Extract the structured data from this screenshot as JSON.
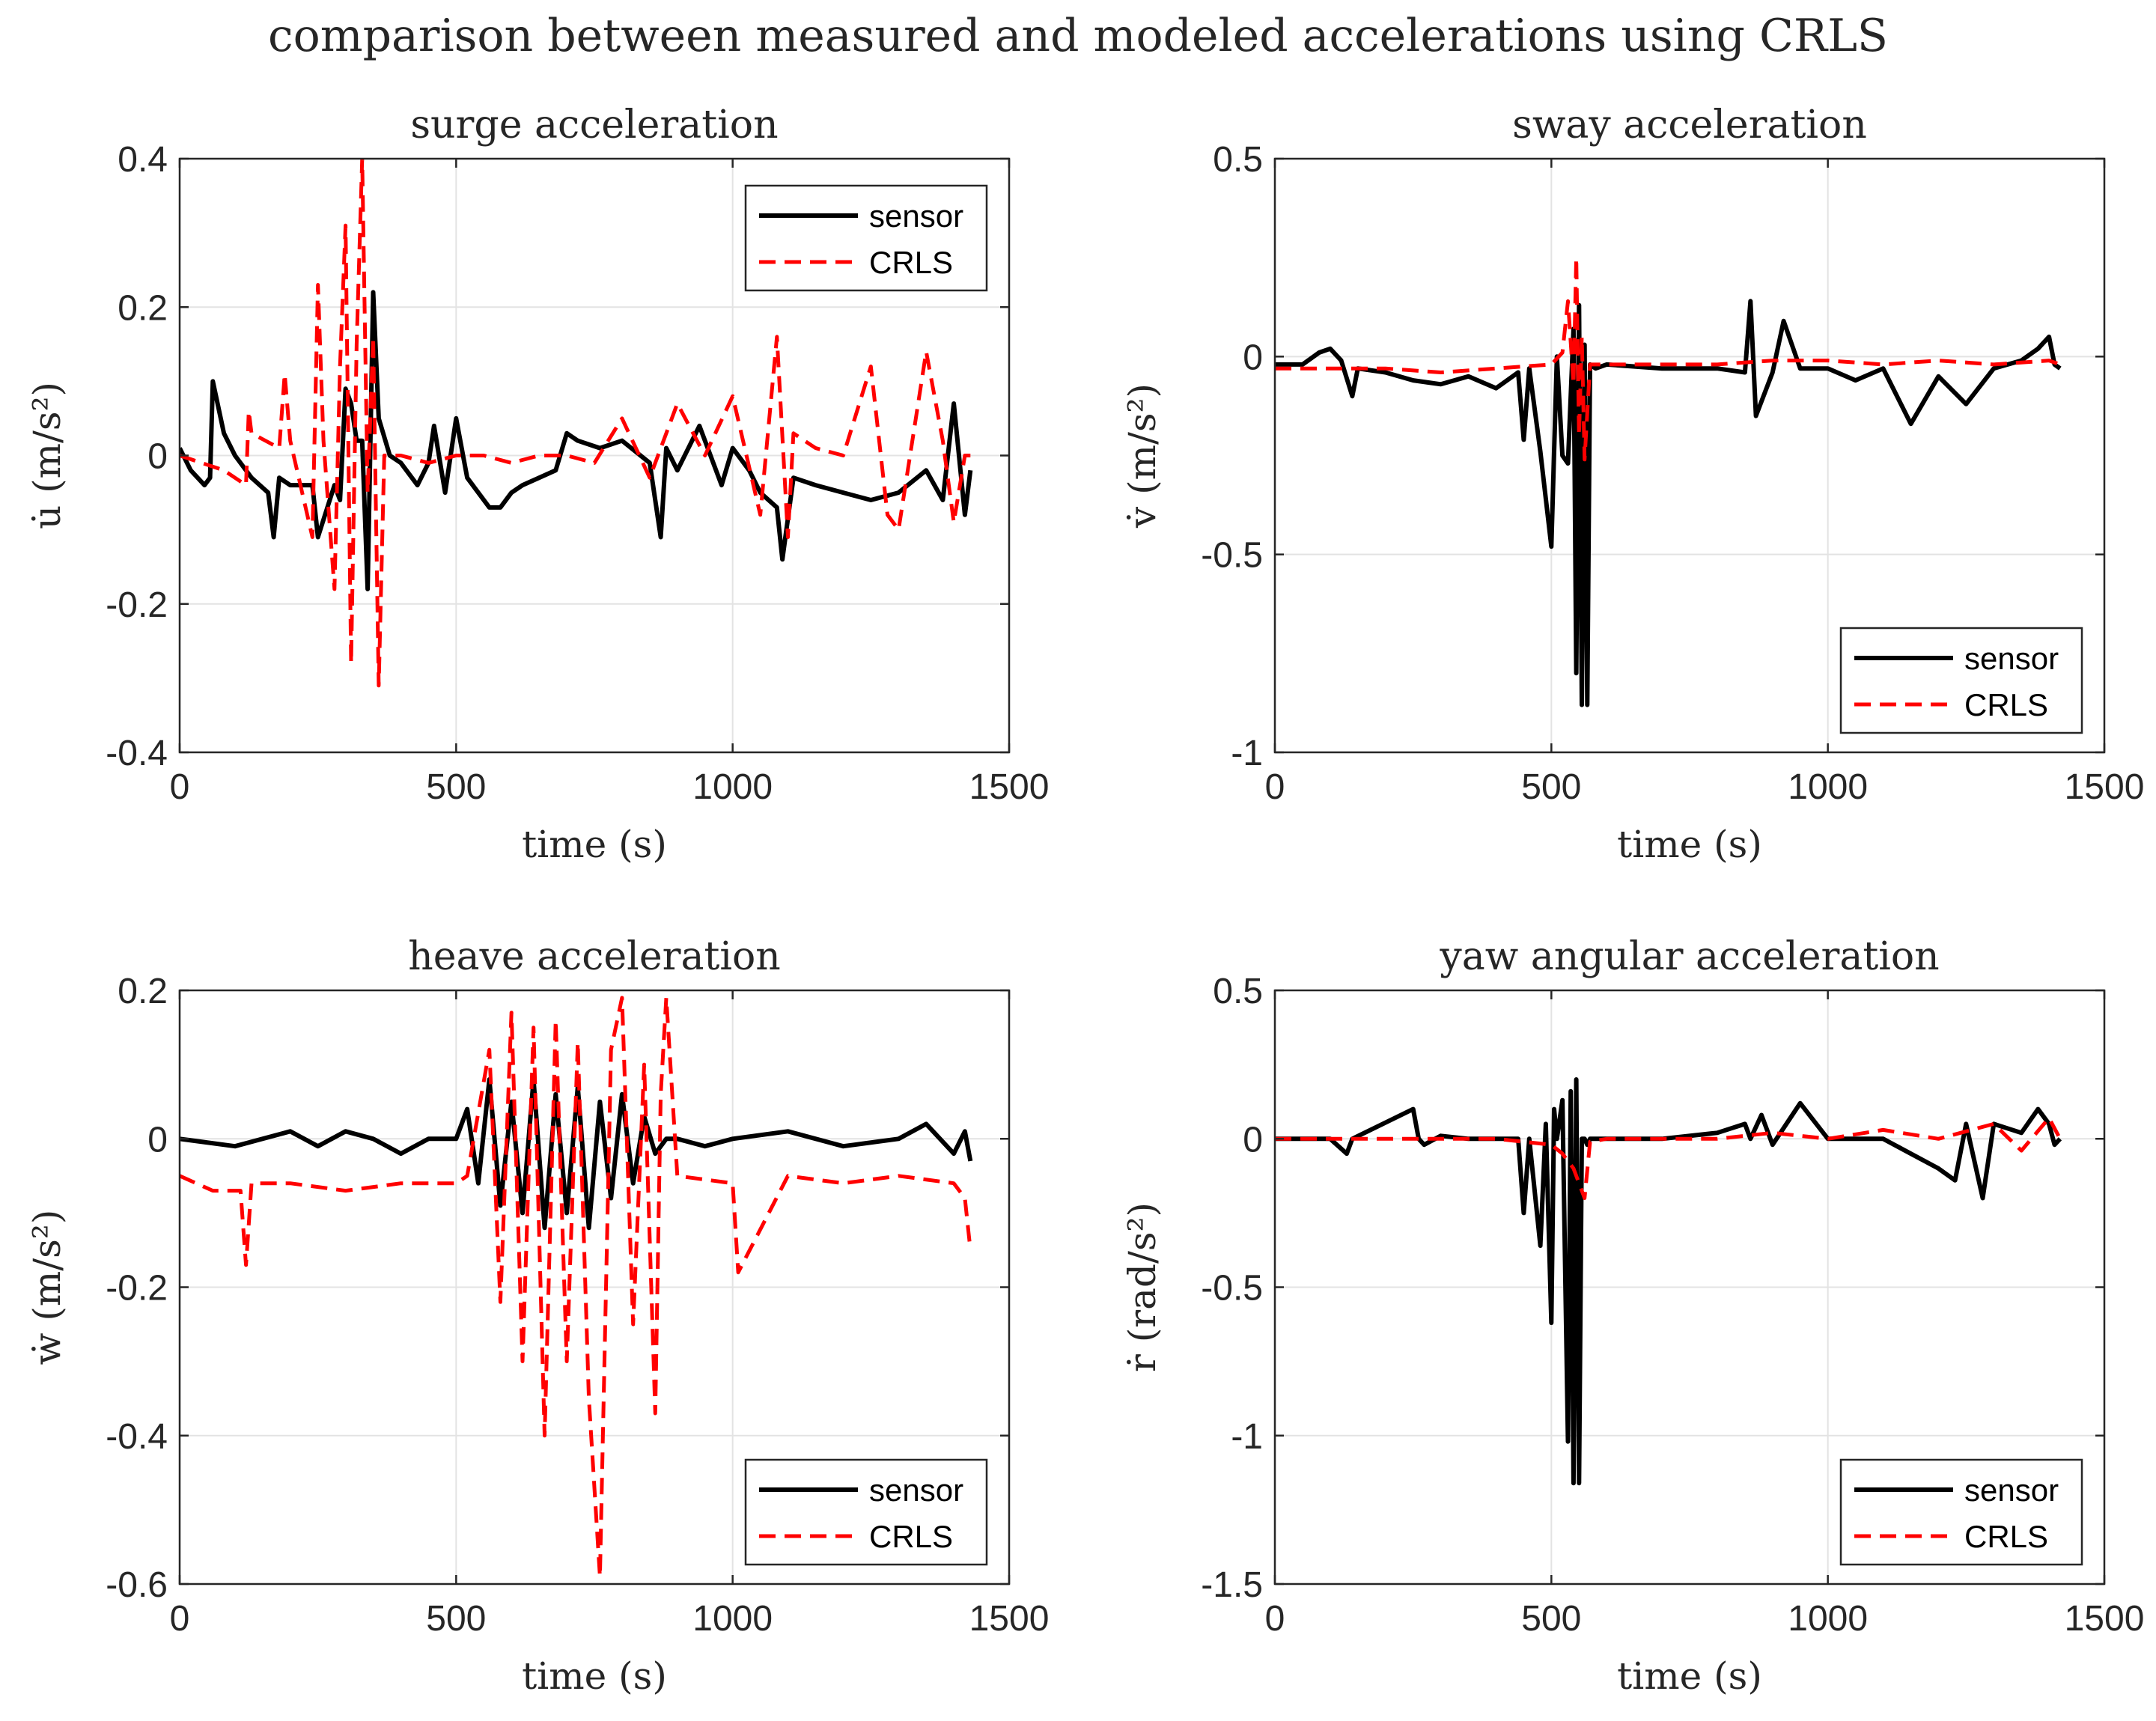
{
  "figure": {
    "title": "comparison between measured and modeled accelerations using CRLS"
  },
  "colors": {
    "sensor": "#000000",
    "crls": "#ff0000"
  },
  "chart_data": [
    {
      "id": "surge",
      "type": "line",
      "title": "surge acceleration",
      "xlabel": "time (s)",
      "ylabel": "u̇ (m/s²)",
      "xlim": [
        0,
        1500
      ],
      "ylim": [
        -0.4,
        0.4
      ],
      "xticks": [
        0,
        500,
        1000,
        1500
      ],
      "yticks": [
        -0.4,
        -0.2,
        0,
        0.2,
        0.4
      ],
      "ytick_labels": [
        "-0.4",
        "-0.2",
        "0",
        "0.2",
        "0.4"
      ],
      "grid": true,
      "legend": "top-right",
      "series": [
        {
          "name": "sensor",
          "color": "#000000",
          "style": "solid",
          "x": [
            0,
            20,
            45,
            55,
            60,
            80,
            100,
            130,
            160,
            170,
            180,
            200,
            240,
            250,
            280,
            290,
            300,
            310,
            320,
            330,
            340,
            350,
            360,
            380,
            400,
            430,
            450,
            460,
            480,
            500,
            520,
            540,
            560,
            580,
            600,
            620,
            650,
            680,
            700,
            720,
            760,
            800,
            850,
            870,
            880,
            900,
            940,
            980,
            1000,
            1030,
            1050,
            1080,
            1090,
            1110,
            1150,
            1200,
            1250,
            1300,
            1350,
            1380,
            1400,
            1420,
            1430
          ],
          "y": [
            0.01,
            -0.02,
            -0.04,
            -0.03,
            0.1,
            0.03,
            0.0,
            -0.03,
            -0.05,
            -0.11,
            -0.03,
            -0.04,
            -0.04,
            -0.11,
            -0.04,
            -0.06,
            0.09,
            0.07,
            0.02,
            0.02,
            -0.18,
            0.22,
            0.05,
            0.0,
            -0.01,
            -0.04,
            -0.01,
            0.04,
            -0.05,
            0.05,
            -0.03,
            -0.05,
            -0.07,
            -0.07,
            -0.05,
            -0.04,
            -0.03,
            -0.02,
            0.03,
            0.02,
            0.01,
            0.02,
            -0.01,
            -0.11,
            0.01,
            -0.02,
            0.04,
            -0.04,
            0.01,
            -0.02,
            -0.05,
            -0.07,
            -0.14,
            -0.03,
            -0.04,
            -0.05,
            -0.06,
            -0.05,
            -0.02,
            -0.06,
            0.07,
            -0.08,
            -0.02
          ]
        },
        {
          "name": "CRLS",
          "color": "#ff0000",
          "style": "dashed",
          "x": [
            0,
            40,
            80,
            120,
            125,
            130,
            180,
            190,
            200,
            240,
            250,
            260,
            280,
            290,
            300,
            310,
            320,
            330,
            340,
            350,
            360,
            370,
            380,
            400,
            450,
            500,
            550,
            600,
            650,
            700,
            750,
            800,
            850,
            900,
            950,
            1000,
            1050,
            1080,
            1100,
            1110,
            1150,
            1200,
            1250,
            1280,
            1300,
            1350,
            1380,
            1400,
            1420,
            1430
          ],
          "y": [
            0.0,
            -0.01,
            -0.02,
            -0.04,
            0.06,
            0.03,
            0.01,
            0.11,
            0.02,
            -0.11,
            0.23,
            0.02,
            -0.18,
            0.12,
            0.31,
            -0.28,
            0.15,
            0.4,
            -0.05,
            0.16,
            -0.31,
            0.0,
            0.0,
            0.0,
            -0.01,
            0.0,
            0.0,
            -0.01,
            0.0,
            0.0,
            -0.01,
            0.05,
            -0.03,
            0.07,
            0.0,
            0.08,
            -0.08,
            0.16,
            -0.11,
            0.03,
            0.01,
            0.0,
            0.12,
            -0.08,
            -0.1,
            0.14,
            0.02,
            -0.09,
            0.0,
            0.0
          ]
        }
      ]
    },
    {
      "id": "sway",
      "type": "line",
      "title": "sway acceleration",
      "xlabel": "time (s)",
      "ylabel": "v̇ (m/s²)",
      "xlim": [
        0,
        1500
      ],
      "ylim": [
        -1,
        0.5
      ],
      "xticks": [
        0,
        500,
        1000,
        1500
      ],
      "yticks": [
        -1,
        -0.5,
        0,
        0.5
      ],
      "ytick_labels": [
        "-1",
        "-0.5",
        "0",
        "0.5"
      ],
      "grid": true,
      "legend": "bottom-right",
      "series": [
        {
          "name": "sensor",
          "color": "#000000",
          "style": "solid",
          "x": [
            0,
            50,
            80,
            100,
            120,
            140,
            150,
            200,
            250,
            300,
            350,
            400,
            440,
            450,
            460,
            480,
            500,
            510,
            520,
            530,
            540,
            545,
            550,
            555,
            560,
            565,
            570,
            580,
            600,
            700,
            800,
            850,
            860,
            870,
            900,
            920,
            950,
            1000,
            1050,
            1100,
            1150,
            1200,
            1250,
            1300,
            1350,
            1380,
            1400,
            1410,
            1420
          ],
          "y": [
            -0.02,
            -0.02,
            0.01,
            0.02,
            -0.01,
            -0.1,
            -0.03,
            -0.04,
            -0.06,
            -0.07,
            -0.05,
            -0.08,
            -0.04,
            -0.21,
            -0.03,
            -0.24,
            -0.48,
            0.0,
            -0.25,
            -0.27,
            0.07,
            -0.8,
            0.13,
            -0.88,
            0.03,
            -0.88,
            -0.02,
            -0.03,
            -0.02,
            -0.03,
            -0.03,
            -0.04,
            0.14,
            -0.15,
            -0.04,
            0.09,
            -0.03,
            -0.03,
            -0.06,
            -0.03,
            -0.17,
            -0.05,
            -0.12,
            -0.03,
            -0.01,
            0.02,
            0.05,
            -0.02,
            -0.03
          ]
        },
        {
          "name": "CRLS",
          "color": "#ff0000",
          "style": "dashed",
          "x": [
            0,
            100,
            200,
            300,
            400,
            500,
            520,
            530,
            540,
            545,
            550,
            555,
            560,
            570,
            600,
            700,
            800,
            900,
            1000,
            1100,
            1200,
            1300,
            1400,
            1420
          ],
          "y": [
            -0.03,
            -0.03,
            -0.03,
            -0.04,
            -0.03,
            -0.02,
            0.01,
            0.14,
            -0.07,
            0.25,
            -0.2,
            0.05,
            -0.26,
            -0.02,
            -0.02,
            -0.02,
            -0.02,
            -0.01,
            -0.01,
            -0.02,
            -0.01,
            -0.02,
            -0.01,
            -0.02
          ]
        }
      ]
    },
    {
      "id": "heave",
      "type": "line",
      "title": "heave acceleration",
      "xlabel": "time (s)",
      "ylabel": "ẇ (m/s²)",
      "xlim": [
        0,
        1500
      ],
      "ylim": [
        -0.6,
        0.2
      ],
      "xticks": [
        0,
        500,
        1000,
        1500
      ],
      "yticks": [
        -0.6,
        -0.4,
        -0.2,
        0,
        0.2
      ],
      "ytick_labels": [
        "-0.6",
        "-0.4",
        "-0.2",
        "0",
        "0.2"
      ],
      "grid": true,
      "legend": "bottom-right",
      "series": [
        {
          "name": "sensor",
          "color": "#000000",
          "style": "solid",
          "x": [
            0,
            100,
            200,
            250,
            300,
            350,
            400,
            450,
            500,
            520,
            540,
            560,
            580,
            600,
            620,
            640,
            660,
            680,
            700,
            720,
            740,
            760,
            780,
            800,
            820,
            840,
            860,
            880,
            900,
            950,
            1000,
            1100,
            1200,
            1300,
            1350,
            1400,
            1420,
            1430
          ],
          "y": [
            0.0,
            -0.01,
            0.01,
            -0.01,
            0.01,
            0.0,
            -0.02,
            0.0,
            0.0,
            0.04,
            -0.06,
            0.08,
            -0.09,
            0.05,
            -0.1,
            0.08,
            -0.12,
            0.06,
            -0.1,
            0.07,
            -0.12,
            0.05,
            -0.08,
            0.06,
            -0.06,
            0.03,
            -0.02,
            0.0,
            0.0,
            -0.01,
            0.0,
            0.01,
            -0.01,
            0.0,
            0.02,
            -0.02,
            0.01,
            -0.03
          ]
        },
        {
          "name": "CRLS",
          "color": "#ff0000",
          "style": "dashed",
          "x": [
            0,
            60,
            110,
            120,
            130,
            200,
            300,
            400,
            500,
            520,
            560,
            580,
            600,
            620,
            640,
            660,
            680,
            700,
            720,
            740,
            760,
            780,
            800,
            820,
            840,
            860,
            870,
            880,
            900,
            1000,
            1010,
            1100,
            1200,
            1300,
            1400,
            1420,
            1430
          ],
          "y": [
            -0.05,
            -0.07,
            -0.07,
            -0.17,
            -0.06,
            -0.06,
            -0.07,
            -0.06,
            -0.06,
            -0.05,
            0.12,
            -0.22,
            0.17,
            -0.3,
            0.15,
            -0.4,
            0.16,
            -0.3,
            0.13,
            -0.35,
            -0.59,
            0.12,
            0.19,
            -0.25,
            0.1,
            -0.37,
            0.06,
            0.19,
            -0.05,
            -0.06,
            -0.18,
            -0.05,
            -0.06,
            -0.05,
            -0.06,
            -0.08,
            -0.15
          ]
        }
      ]
    },
    {
      "id": "yaw",
      "type": "line",
      "title": "yaw angular acceleration",
      "xlabel": "time (s)",
      "ylabel": "ṙ (rad/s²)",
      "xlim": [
        0,
        1500
      ],
      "ylim": [
        -1.5,
        0.5
      ],
      "xticks": [
        0,
        500,
        1000,
        1500
      ],
      "yticks": [
        -1.5,
        -1,
        -0.5,
        0,
        0.5
      ],
      "ytick_labels": [
        "-1.5",
        "-1",
        "-0.5",
        "0",
        "0.5"
      ],
      "grid": true,
      "legend": "bottom-right",
      "series": [
        {
          "name": "sensor",
          "color": "#000000",
          "style": "solid",
          "x": [
            0,
            100,
            130,
            140,
            250,
            260,
            270,
            300,
            350,
            400,
            440,
            450,
            460,
            480,
            490,
            500,
            505,
            510,
            520,
            530,
            535,
            540,
            545,
            550,
            555,
            560,
            565,
            570,
            580,
            600,
            700,
            800,
            850,
            860,
            880,
            900,
            950,
            1000,
            1100,
            1200,
            1230,
            1250,
            1280,
            1300,
            1350,
            1380,
            1400,
            1410,
            1420
          ],
          "y": [
            0.0,
            0.0,
            -0.05,
            0.0,
            0.1,
            0.0,
            -0.02,
            0.01,
            0.0,
            0.0,
            0.0,
            -0.25,
            0.0,
            -0.36,
            0.05,
            -0.62,
            0.1,
            0.0,
            0.13,
            -1.02,
            0.16,
            -1.16,
            0.2,
            -1.16,
            0.0,
            0.0,
            -0.02,
            0.0,
            0.0,
            0.0,
            0.0,
            0.02,
            0.05,
            0.0,
            0.08,
            -0.02,
            0.12,
            0.0,
            0.0,
            -0.1,
            -0.14,
            0.05,
            -0.2,
            0.05,
            0.02,
            0.1,
            0.05,
            -0.02,
            0.0
          ]
        },
        {
          "name": "CRLS",
          "color": "#ff0000",
          "style": "dashed",
          "x": [
            0,
            100,
            200,
            300,
            400,
            500,
            520,
            540,
            560,
            570,
            600,
            700,
            800,
            900,
            1000,
            1100,
            1200,
            1300,
            1350,
            1400,
            1420
          ],
          "y": [
            0.0,
            0.0,
            0.0,
            0.0,
            0.0,
            -0.02,
            -0.05,
            -0.1,
            -0.2,
            -0.01,
            0.0,
            0.0,
            0.0,
            0.02,
            0.0,
            0.03,
            0.0,
            0.05,
            -0.04,
            0.07,
            0.0
          ]
        }
      ]
    }
  ]
}
